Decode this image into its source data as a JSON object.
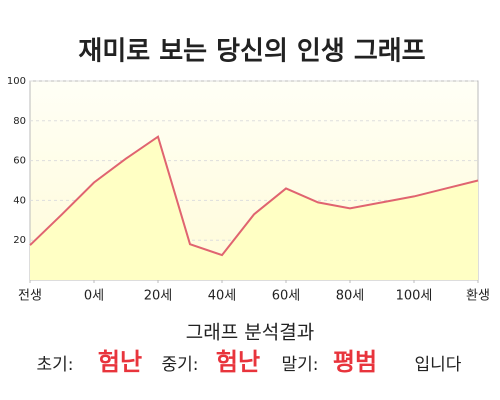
{
  "chart_data": {
    "type": "area",
    "title": "재미로 보는 당신의 인생 그래프",
    "x": [
      0,
      1,
      2,
      3,
      4,
      5,
      6,
      7,
      8,
      9,
      10,
      11,
      12,
      13,
      14
    ],
    "values": [
      17.5,
      33,
      49,
      61,
      72,
      18,
      12.5,
      33,
      46,
      39,
      36,
      39,
      42,
      46,
      50
    ],
    "color": "#e06470",
    "fill": "#ffffc4",
    "xlim": [
      0,
      14
    ],
    "xticks": [
      {
        "value": 0,
        "label": "전생"
      },
      {
        "value": 2,
        "label": "0세"
      },
      {
        "value": 4,
        "label": "20세"
      },
      {
        "value": 6,
        "label": "40세"
      },
      {
        "value": 8,
        "label": "60세"
      },
      {
        "value": 10,
        "label": "80세"
      },
      {
        "value": 12,
        "label": "100세"
      },
      {
        "value": 14,
        "label": "환생"
      }
    ],
    "ylim": [
      0,
      100
    ],
    "yticks": [
      20,
      40,
      60,
      80,
      100
    ],
    "grid": true
  },
  "footer": {
    "heading": "그래프 분석결과",
    "items": [
      {
        "label": "초기:",
        "value": "험난"
      },
      {
        "label": "중기:",
        "value": "험난"
      },
      {
        "label": "말기:",
        "value": "평범"
      }
    ],
    "closing": "입니다"
  }
}
